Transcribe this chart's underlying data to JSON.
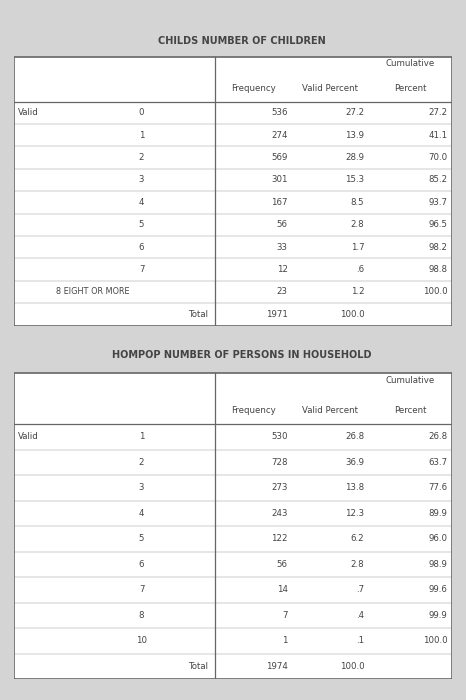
{
  "table1_title": "CHILDS NUMBER OF CHILDREN",
  "table1_rows": [
    [
      "Valid",
      "0",
      "536",
      "27.2",
      "27.2"
    ],
    [
      "",
      "1",
      "274",
      "13.9",
      "41.1"
    ],
    [
      "",
      "2",
      "569",
      "28.9",
      "70.0"
    ],
    [
      "",
      "3",
      "301",
      "15.3",
      "85.2"
    ],
    [
      "",
      "4",
      "167",
      "8.5",
      "93.7"
    ],
    [
      "",
      "5",
      "56",
      "2.8",
      "96.5"
    ],
    [
      "",
      "6",
      "33",
      "1.7",
      "98.2"
    ],
    [
      "",
      "7",
      "12",
      ".6",
      "98.8"
    ],
    [
      "",
      "8 EIGHT OR MORE",
      "23",
      "1.2",
      "100.0"
    ],
    [
      "",
      "Total",
      "1971",
      "100.0",
      ""
    ]
  ],
  "table2_title": "HOMPOP NUMBER OF PERSONS IN HOUSEHOLD",
  "table2_rows": [
    [
      "Valid",
      "1",
      "530",
      "26.8",
      "26.8"
    ],
    [
      "",
      "2",
      "728",
      "36.9",
      "63.7"
    ],
    [
      "",
      "3",
      "273",
      "13.8",
      "77.6"
    ],
    [
      "",
      "4",
      "243",
      "12.3",
      "89.9"
    ],
    [
      "",
      "5",
      "122",
      "6.2",
      "96.0"
    ],
    [
      "",
      "6",
      "56",
      "2.8",
      "98.9"
    ],
    [
      "",
      "7",
      "14",
      ".7",
      "99.6"
    ],
    [
      "",
      "8",
      "7",
      ".4",
      "99.9"
    ],
    [
      "",
      "10",
      "1",
      ".1",
      "100.0"
    ],
    [
      "",
      "Total",
      "1974",
      "100.0",
      ""
    ]
  ],
  "bg_color": "#d4d4d4",
  "white": "#ffffff",
  "border_color": "#666666",
  "text_color": "#444444",
  "title_fontsize": 7.0,
  "data_fontsize": 6.2,
  "header_fontsize": 6.2
}
